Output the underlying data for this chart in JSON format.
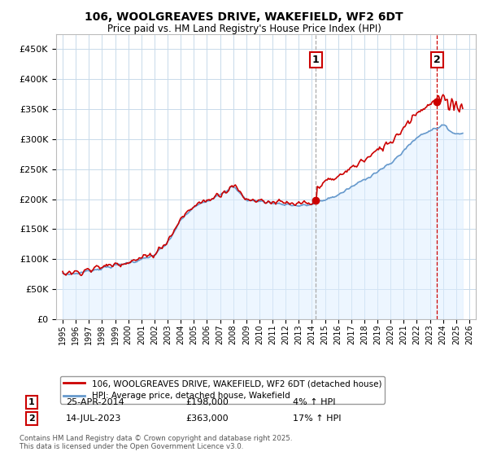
{
  "title": "106, WOOLGREAVES DRIVE, WAKEFIELD, WF2 6DT",
  "subtitle": "Price paid vs. HM Land Registry's House Price Index (HPI)",
  "legend_line1": "106, WOOLGREAVES DRIVE, WAKEFIELD, WF2 6DT (detached house)",
  "legend_line2": "HPI: Average price, detached house, Wakefield",
  "annotation1_label": "1",
  "annotation1_date": "25-APR-2014",
  "annotation1_price": "£198,000",
  "annotation1_hpi": "4% ↑ HPI",
  "annotation1_year": 2014.3,
  "annotation1_value": 198000,
  "annotation2_label": "2",
  "annotation2_date": "14-JUL-2023",
  "annotation2_price": "£363,000",
  "annotation2_hpi": "17% ↑ HPI",
  "annotation2_year": 2023.54,
  "annotation2_value": 363000,
  "footer": "Contains HM Land Registry data © Crown copyright and database right 2025.\nThis data is licensed under the Open Government Licence v3.0.",
  "ylim": [
    0,
    475000
  ],
  "xlim_start": 1994.5,
  "xlim_end": 2026.5,
  "price_color": "#cc0000",
  "hpi_color": "#6699cc",
  "hpi_fill_color": "#ddeeff",
  "grid_color": "#c8daea",
  "annotation1_line_color": "#aaaaaa",
  "annotation2_line_color": "#cc0000",
  "background_color": "#ffffff",
  "yticks": [
    0,
    50000,
    100000,
    150000,
    200000,
    250000,
    300000,
    350000,
    400000,
    450000
  ]
}
